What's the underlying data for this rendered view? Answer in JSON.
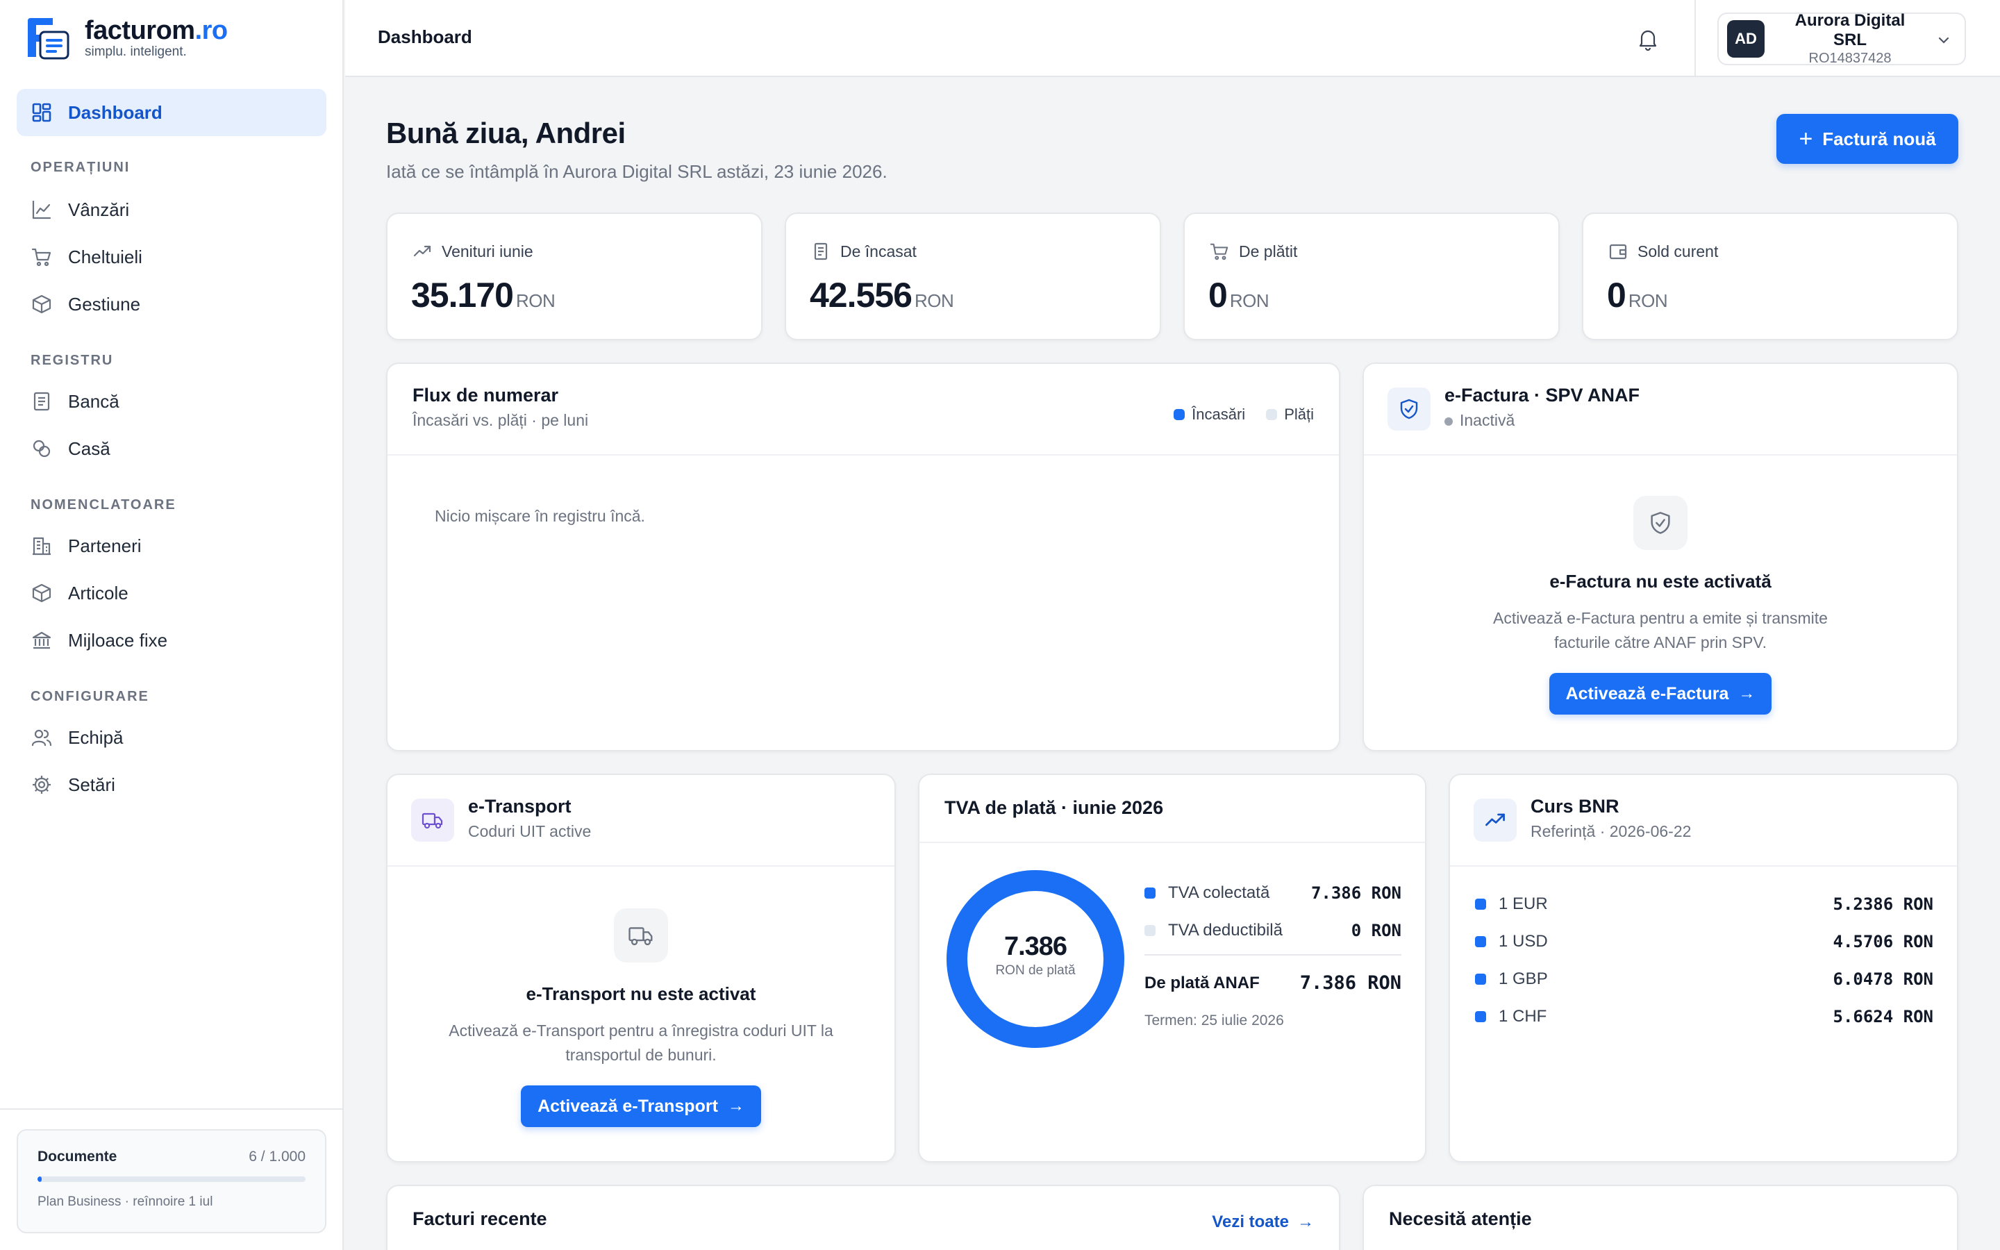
{
  "brand": {
    "name": "facturom",
    "tld": ".ro",
    "tagline": "simplu. inteligent."
  },
  "sidebar": {
    "dashboard": "Dashboard",
    "sections": {
      "operatiuni": "OPERAȚIUNI",
      "registru": "REGISTRU",
      "nomenclatoare": "NOMENCLATOARE",
      "configurare": "CONFIGURARE"
    },
    "items": {
      "vanzari": "Vânzări",
      "cheltuieli": "Cheltuieli",
      "gestiune": "Gestiune",
      "banca": "Bancă",
      "casa": "Casă",
      "parteneri": "Parteneri",
      "articole": "Articole",
      "mijloace": "Mijloace fixe",
      "echipa": "Echipă",
      "setari": "Setări"
    },
    "plan": {
      "title": "Documente",
      "count": "6 / 1.000",
      "usage_fraction": 0.006,
      "note": "Plan Business · reînnoire 1 iul"
    }
  },
  "topbar": {
    "title": "Dashboard",
    "company_initials": "AD",
    "company_name": "Aurora Digital SRL",
    "company_cui": "RO14837428"
  },
  "header": {
    "greeting": "Bună ziua, Andrei",
    "subtitle": "Iată ce se întâmplă în Aurora Digital SRL astăzi, 23 iunie 2026.",
    "new_invoice": "Factură nouă"
  },
  "stats": [
    {
      "label": "Venituri iunie",
      "value": "35.170",
      "unit": "RON",
      "icon": "trend-up-icon"
    },
    {
      "label": "De încasat",
      "value": "42.556",
      "unit": "RON",
      "icon": "receipt-icon"
    },
    {
      "label": "De plătit",
      "value": "0",
      "unit": "RON",
      "icon": "cart-icon"
    },
    {
      "label": "Sold curent",
      "value": "0",
      "unit": "RON",
      "icon": "wallet-icon"
    }
  ],
  "cashflow": {
    "title": "Flux de numerar",
    "subtitle": "Încasări vs. plăți · pe luni",
    "legend_in": "Încasări",
    "legend_out": "Plăți",
    "empty": "Nicio mișcare în registru încă."
  },
  "efactura": {
    "title": "e-Factura · SPV ANAF",
    "status": "Inactivă",
    "empty_title": "e-Factura nu este activată",
    "empty_desc": "Activează e-Factura pentru a emite și transmite facturile către ANAF prin SPV.",
    "button": "Activează e-Factura"
  },
  "etransport": {
    "title": "e-Transport",
    "subtitle": "Coduri UIT active",
    "empty_title": "e-Transport nu este activat",
    "empty_desc": "Activează e-Transport pentru a înregistra coduri UIT la transportul de bunuri.",
    "button": "Activează e-Transport"
  },
  "vat": {
    "title": "TVA de plată · iunie 2026",
    "donut_value": "7.386",
    "donut_label": "RON de plată",
    "collected_label": "TVA colectată",
    "collected_value": "7.386 RON",
    "deductible_label": "TVA deductibilă",
    "deductible_value": "0 RON",
    "due_label": "De plată ANAF",
    "due_value": "7.386 RON",
    "deadline": "Termen: 25 iulie 2026",
    "colors": {
      "collected": "#1a6ff5",
      "deductible": "#e2e8f0"
    }
  },
  "bnr": {
    "title": "Curs BNR",
    "subtitle": "Referință · 2026-06-22",
    "rates": [
      {
        "currency": "1 EUR",
        "value": "5.2386 RON"
      },
      {
        "currency": "1 USD",
        "value": "4.5706 RON"
      },
      {
        "currency": "1 GBP",
        "value": "6.0478 RON"
      },
      {
        "currency": "1 CHF",
        "value": "5.6624 RON"
      }
    ]
  },
  "recent": {
    "title": "Facturi recente",
    "link": "Vezi toate"
  },
  "attention": {
    "title": "Necesită atenție"
  },
  "colors": {
    "accent": "#1a6ff5",
    "accent_bg": "#e6effe"
  }
}
